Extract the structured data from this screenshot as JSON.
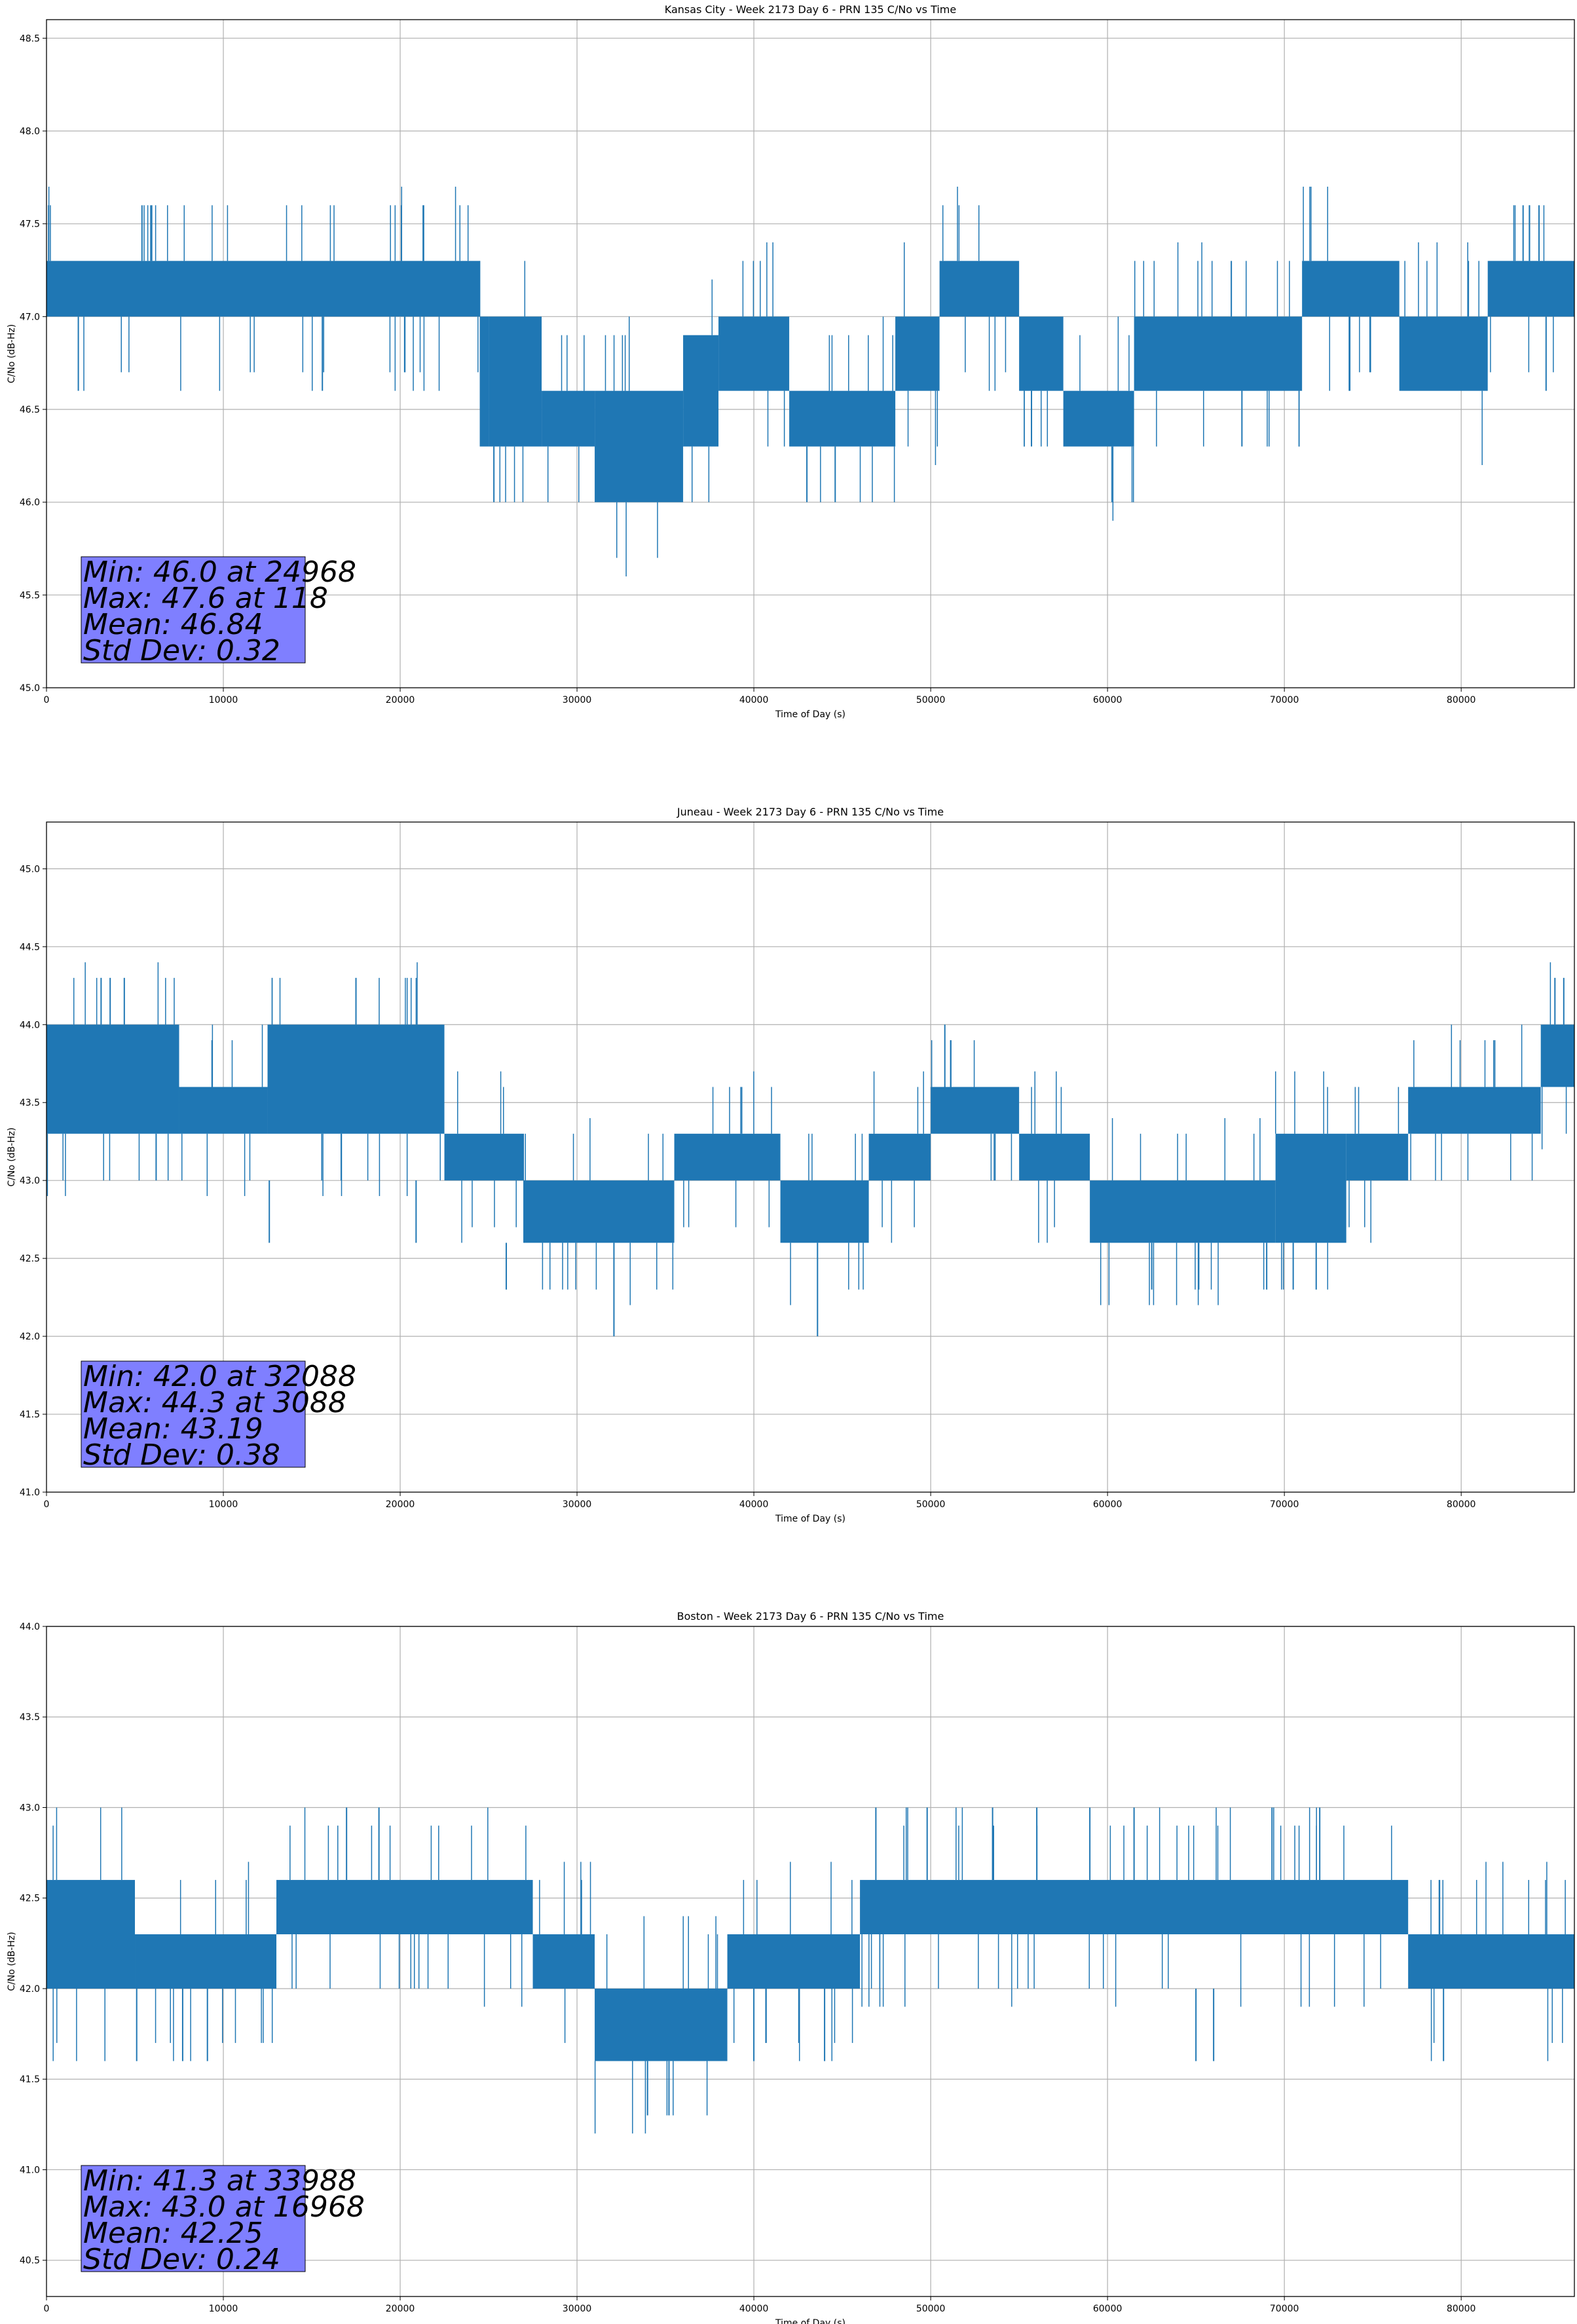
{
  "chart_data": [
    {
      "type": "line",
      "title": "Kansas City - Week 2173 Day 6 - PRN 135 C/No vs Time",
      "xlabel": "Time of Day (s)",
      "ylabel": "C/No (dB-Hz)",
      "xlim": [
        0,
        86400
      ],
      "ylim": [
        45.0,
        48.6
      ],
      "xticks": [
        0,
        10000,
        20000,
        30000,
        40000,
        50000,
        60000,
        70000,
        80000
      ],
      "yticks": [
        "45.0",
        "45.5",
        "46.0",
        "46.5",
        "47.0",
        "47.5",
        "48.0",
        "48.5"
      ],
      "grid": true,
      "color": "#1f77b4",
      "stats": [
        "Min: 46.0 at 24968",
        "Max: 47.6 at 118",
        "Mean: 46.84",
        "Std Dev: 0.32"
      ],
      "bands": [
        {
          "x": [
            0,
            24500
          ],
          "y": [
            47.0,
            47.3
          ]
        },
        {
          "x": [
            24500,
            25000
          ],
          "y": [
            46.3,
            47.0
          ]
        },
        {
          "x": [
            25000,
            28000
          ],
          "y": [
            46.3,
            47.0
          ]
        },
        {
          "x": [
            28000,
            31000
          ],
          "y": [
            46.3,
            46.6
          ]
        },
        {
          "x": [
            31000,
            36000
          ],
          "y": [
            46.0,
            46.6
          ]
        },
        {
          "x": [
            36000,
            38000
          ],
          "y": [
            46.3,
            46.9
          ]
        },
        {
          "x": [
            38000,
            42000
          ],
          "y": [
            46.6,
            47.0
          ]
        },
        {
          "x": [
            42000,
            48000
          ],
          "y": [
            46.3,
            46.6
          ]
        },
        {
          "x": [
            48000,
            50500
          ],
          "y": [
            46.6,
            47.0
          ]
        },
        {
          "x": [
            50500,
            55000
          ],
          "y": [
            47.0,
            47.3
          ]
        },
        {
          "x": [
            55000,
            57500
          ],
          "y": [
            46.6,
            47.0
          ]
        },
        {
          "x": [
            57500,
            61500
          ],
          "y": [
            46.3,
            46.6
          ]
        },
        {
          "x": [
            61500,
            71000
          ],
          "y": [
            46.6,
            47.0
          ]
        },
        {
          "x": [
            71000,
            76500
          ],
          "y": [
            47.0,
            47.3
          ]
        },
        {
          "x": [
            76500,
            81500
          ],
          "y": [
            46.6,
            47.0
          ]
        },
        {
          "x": [
            81500,
            86400
          ],
          "y": [
            47.0,
            47.3
          ]
        }
      ],
      "spikes": [
        {
          "x": 118,
          "y": [
            47.3,
            47.6
          ]
        },
        {
          "x": 5400,
          "y": [
            47.3,
            47.6
          ]
        },
        {
          "x": 5900,
          "y": [
            47.3,
            47.6
          ]
        },
        {
          "x": 21300,
          "y": [
            47.3,
            47.6
          ]
        },
        {
          "x": 83500,
          "y": [
            47.3,
            47.6
          ]
        },
        {
          "x": 84400,
          "y": [
            47.3,
            47.6
          ]
        },
        {
          "x": 25300,
          "y": [
            46.0,
            46.3
          ]
        },
        {
          "x": 43000,
          "y": [
            46.0,
            46.3
          ]
        },
        {
          "x": 44600,
          "y": [
            46.0,
            46.3
          ]
        },
        {
          "x": 55700,
          "y": [
            46.3,
            46.6
          ]
        },
        {
          "x": 67600,
          "y": [
            46.3,
            46.6
          ]
        },
        {
          "x": 1800,
          "y": [
            46.6,
            47.0
          ]
        },
        {
          "x": 15600,
          "y": [
            46.6,
            47.0
          ]
        },
        {
          "x": 73700,
          "y": [
            46.6,
            47.0
          ]
        },
        {
          "x": 84800,
          "y": [
            46.6,
            47.0
          ]
        },
        {
          "x": 67000,
          "y": [
            47.0,
            47.3
          ]
        }
      ]
    },
    {
      "type": "line",
      "title": "Juneau - Week 2173 Day 6 - PRN 135 C/No vs Time",
      "xlabel": "Time of Day (s)",
      "ylabel": "C/No (dB-Hz)",
      "xlim": [
        0,
        86400
      ],
      "ylim": [
        41.0,
        45.3
      ],
      "xticks": [
        0,
        10000,
        20000,
        30000,
        40000,
        50000,
        60000,
        70000,
        80000
      ],
      "yticks": [
        "41.0",
        "41.5",
        "42.0",
        "42.5",
        "43.0",
        "43.5",
        "44.0",
        "44.5",
        "45.0"
      ],
      "grid": true,
      "color": "#1f77b4",
      "stats": [
        "Min: 42.0 at 32088",
        "Max: 44.3 at 3088",
        "Mean: 43.19",
        "Std Dev: 0.38"
      ],
      "bands": [
        {
          "x": [
            0,
            7500
          ],
          "y": [
            43.3,
            44.0
          ]
        },
        {
          "x": [
            7500,
            12500
          ],
          "y": [
            43.3,
            43.6
          ]
        },
        {
          "x": [
            12500,
            22500
          ],
          "y": [
            43.3,
            44.0
          ]
        },
        {
          "x": [
            22500,
            27000
          ],
          "y": [
            43.0,
            43.3
          ]
        },
        {
          "x": [
            27000,
            35500
          ],
          "y": [
            42.6,
            43.0
          ]
        },
        {
          "x": [
            35500,
            41500
          ],
          "y": [
            43.0,
            43.3
          ]
        },
        {
          "x": [
            41500,
            46500
          ],
          "y": [
            42.6,
            43.0
          ]
        },
        {
          "x": [
            46500,
            50000
          ],
          "y": [
            43.0,
            43.3
          ]
        },
        {
          "x": [
            50000,
            55000
          ],
          "y": [
            43.3,
            43.6
          ]
        },
        {
          "x": [
            55000,
            59000
          ],
          "y": [
            43.0,
            43.3
          ]
        },
        {
          "x": [
            59000,
            69500
          ],
          "y": [
            42.6,
            43.0
          ]
        },
        {
          "x": [
            69500,
            73500
          ],
          "y": [
            42.6,
            43.3
          ]
        },
        {
          "x": [
            73500,
            77000
          ],
          "y": [
            43.0,
            43.3
          ]
        },
        {
          "x": [
            77000,
            84500
          ],
          "y": [
            43.3,
            43.6
          ]
        },
        {
          "x": [
            84500,
            86400
          ],
          "y": [
            43.6,
            44.0
          ]
        }
      ],
      "spikes": [
        {
          "x": 3088,
          "y": [
            44.0,
            44.3
          ]
        },
        {
          "x": 3600,
          "y": [
            44.0,
            44.3
          ]
        },
        {
          "x": 4400,
          "y": [
            44.0,
            44.3
          ]
        },
        {
          "x": 17500,
          "y": [
            44.0,
            44.3
          ]
        },
        {
          "x": 50800,
          "y": [
            43.6,
            44.0
          ]
        },
        {
          "x": 85300,
          "y": [
            44.0,
            44.3
          ]
        },
        {
          "x": 85800,
          "y": [
            44.0,
            44.3
          ]
        },
        {
          "x": 32088,
          "y": [
            42.0,
            42.6
          ]
        },
        {
          "x": 43600,
          "y": [
            42.0,
            42.6
          ]
        },
        {
          "x": 26000,
          "y": [
            42.3,
            42.6
          ]
        },
        {
          "x": 12600,
          "y": [
            42.6,
            43.0
          ]
        },
        {
          "x": 20900,
          "y": [
            42.6,
            43.0
          ]
        },
        {
          "x": 62500,
          "y": [
            42.3,
            42.6
          ]
        },
        {
          "x": 69000,
          "y": [
            42.3,
            42.6
          ]
        },
        {
          "x": 70500,
          "y": [
            42.3,
            42.6
          ]
        },
        {
          "x": 71800,
          "y": [
            42.3,
            42.6
          ]
        },
        {
          "x": 6200,
          "y": [
            43.0,
            43.3
          ]
        }
      ]
    },
    {
      "type": "line",
      "title": "Boston - Week 2173 Day 6 - PRN 135 C/No vs Time",
      "xlabel": "Time of Day (s)",
      "ylabel": "C/No (dB-Hz)",
      "xlim": [
        0,
        86400
      ],
      "ylim": [
        40.3,
        44.0
      ],
      "xticks": [
        0,
        10000,
        20000,
        30000,
        40000,
        50000,
        60000,
        70000,
        80000
      ],
      "yticks": [
        "40.5",
        "41.0",
        "41.5",
        "42.0",
        "42.5",
        "43.0",
        "43.5",
        "44.0"
      ],
      "grid": true,
      "color": "#1f77b4",
      "stats": [
        "Min: 41.3 at 33988",
        "Max: 43.0 at 16968",
        "Mean: 42.25",
        "Std Dev: 0.24"
      ],
      "bands": [
        {
          "x": [
            0,
            5000
          ],
          "y": [
            42.0,
            42.6
          ]
        },
        {
          "x": [
            5000,
            13000
          ],
          "y": [
            42.0,
            42.3
          ]
        },
        {
          "x": [
            13000,
            27500
          ],
          "y": [
            42.3,
            42.6
          ]
        },
        {
          "x": [
            27500,
            31000
          ],
          "y": [
            42.0,
            42.3
          ]
        },
        {
          "x": [
            31000,
            38500
          ],
          "y": [
            41.6,
            42.0
          ]
        },
        {
          "x": [
            38500,
            46000
          ],
          "y": [
            42.0,
            42.3
          ]
        },
        {
          "x": [
            46000,
            77000
          ],
          "y": [
            42.3,
            42.6
          ]
        },
        {
          "x": [
            77000,
            86400
          ],
          "y": [
            42.0,
            42.3
          ]
        }
      ],
      "spikes": [
        {
          "x": 16968,
          "y": [
            42.6,
            43.0
          ]
        },
        {
          "x": 18800,
          "y": [
            42.6,
            43.0
          ]
        },
        {
          "x": 46900,
          "y": [
            42.6,
            43.0
          ]
        },
        {
          "x": 49800,
          "y": [
            42.6,
            43.0
          ]
        },
        {
          "x": 53500,
          "y": [
            42.6,
            43.0
          ]
        },
        {
          "x": 56000,
          "y": [
            42.6,
            43.0
          ]
        },
        {
          "x": 59000,
          "y": [
            42.6,
            43.0
          ]
        },
        {
          "x": 61500,
          "y": [
            42.6,
            43.0
          ]
        },
        {
          "x": 69300,
          "y": [
            42.6,
            43.0
          ]
        },
        {
          "x": 72000,
          "y": [
            42.6,
            43.0
          ]
        },
        {
          "x": 33988,
          "y": [
            41.3,
            41.6
          ]
        },
        {
          "x": 35200,
          "y": [
            41.3,
            41.6
          ]
        },
        {
          "x": 5100,
          "y": [
            41.6,
            42.0
          ]
        },
        {
          "x": 7700,
          "y": [
            41.6,
            42.0
          ]
        },
        {
          "x": 9100,
          "y": [
            41.6,
            42.0
          ]
        },
        {
          "x": 65000,
          "y": [
            41.6,
            42.0
          ]
        },
        {
          "x": 66000,
          "y": [
            41.6,
            42.0
          ]
        },
        {
          "x": 79000,
          "y": [
            41.6,
            42.0
          ]
        },
        {
          "x": 40000,
          "y": [
            41.6,
            42.0
          ]
        },
        {
          "x": 44000,
          "y": [
            41.6,
            42.0
          ]
        }
      ]
    }
  ]
}
